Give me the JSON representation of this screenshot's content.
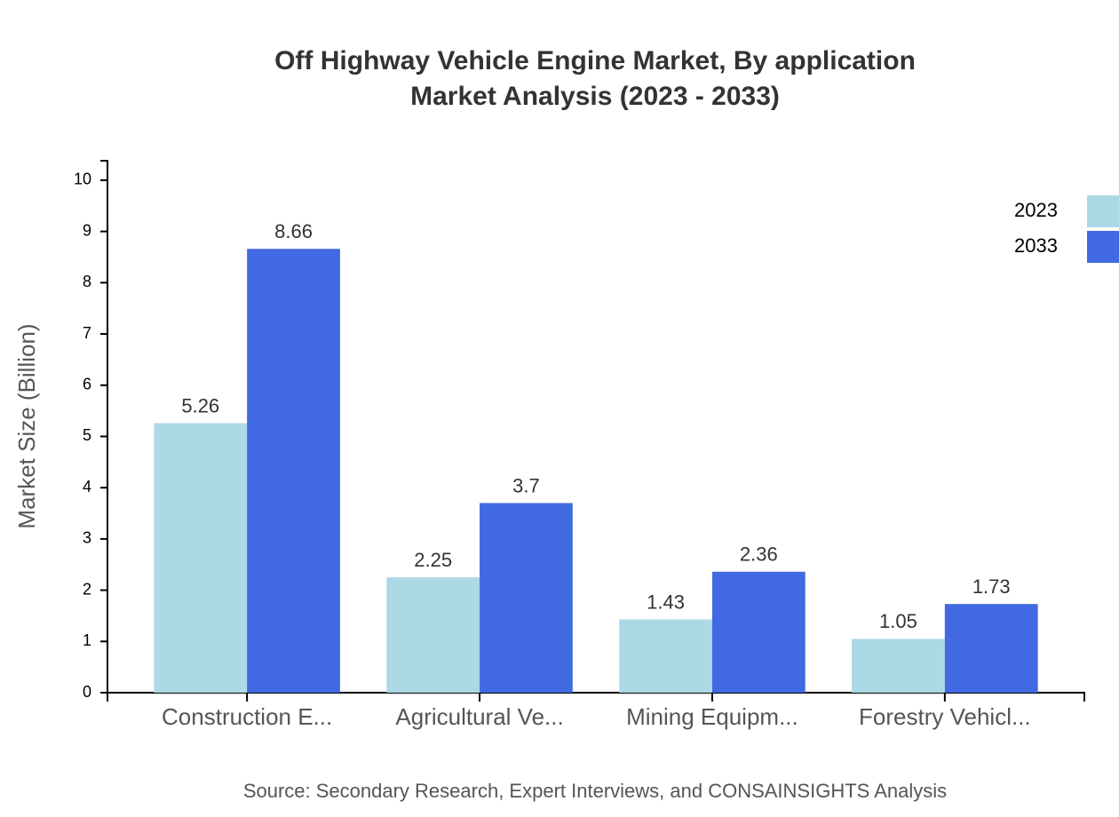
{
  "chart_data": {
    "type": "bar",
    "title": "Off Highway Vehicle Engine Market, By application",
    "subtitle": "Market Analysis (2023 - 2033)",
    "y_label": "Market Size (Billion)",
    "source": "Source: Secondary Research, Expert Interviews, and CONSAINSIGHTS Analysis",
    "categories": [
      "Construction E...",
      "Agricultural Ve...",
      "Mining Equipm...",
      "Forestry Vehicl..."
    ],
    "series": [
      {
        "name": "2023",
        "color": "#add8e6",
        "values": [
          5.26,
          2.25,
          1.43,
          1.05
        ]
      },
      {
        "name": "2033",
        "color": "#4169e1",
        "values": [
          8.66,
          3.7,
          2.36,
          1.73
        ]
      }
    ],
    "ylim": [
      0,
      10.38
    ],
    "yticks": [
      0,
      1,
      2,
      3,
      4,
      5,
      6,
      7,
      8,
      9,
      10
    ],
    "legend": "top-right"
  }
}
